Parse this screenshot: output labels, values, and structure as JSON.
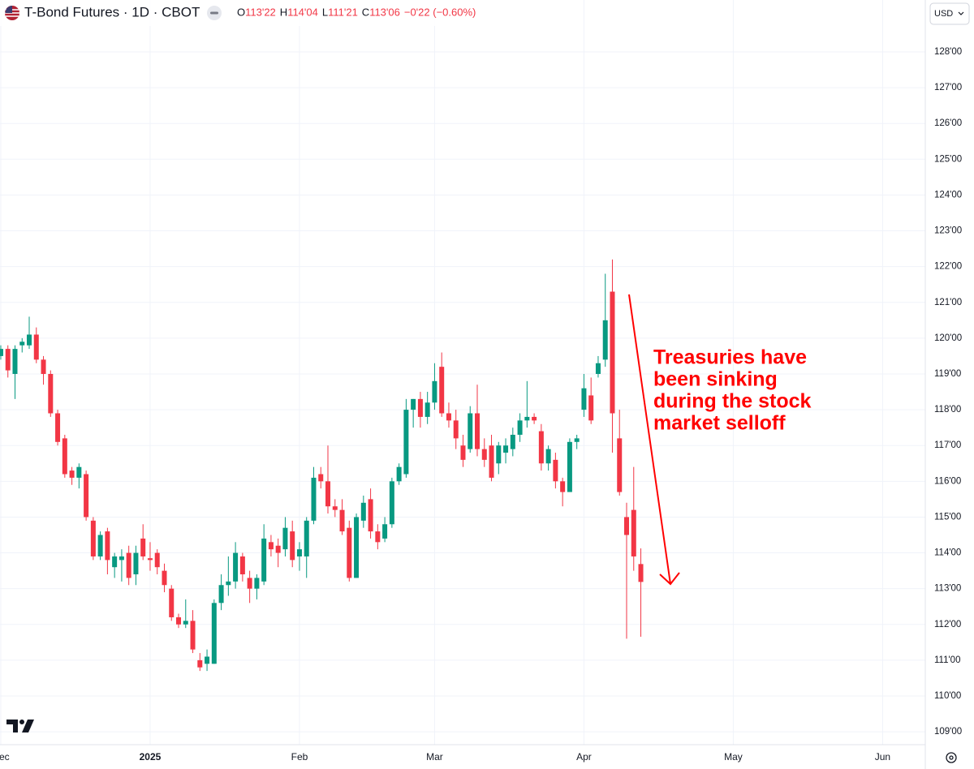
{
  "chart_data": {
    "type": "candlestick",
    "title": "T-Bond Futures · 1D · CBOT",
    "ohlc": [
      {
        "label": "O",
        "value": "113'22"
      },
      {
        "label": "H",
        "value": "114'04"
      },
      {
        "label": "L",
        "value": "111'21"
      },
      {
        "label": "C",
        "value": "113'06"
      }
    ],
    "change": "−0'22 (−0.60%)",
    "currency": "USD",
    "annotation": [
      "Treasuries have",
      "been sinking",
      "during the stock",
      "market selloff"
    ],
    "up_color": "#089981",
    "down_color": "#f23645",
    "annotation_color": "#ff0000",
    "grid": true,
    "open": [
      119.5,
      119.7,
      119.0,
      119.8,
      119.8,
      120.1,
      119.4,
      119.0,
      117.9,
      117.2,
      116.3,
      116.1,
      116.2,
      114.9,
      113.9,
      114.6,
      113.6,
      113.8,
      114.0,
      113.4,
      114.4,
      113.85,
      114.0,
      113.5,
      113.0,
      112.2,
      112.0,
      112.1,
      111.0,
      110.9,
      110.9,
      112.6,
      113.1,
      113.2,
      113.9,
      113.3,
      113.0,
      113.2,
      114.3,
      114.2,
      114.1,
      114.6,
      113.9,
      113.9,
      114.9,
      116.2,
      116.0,
      115.3,
      115.2,
      114.7,
      113.3,
      114.9,
      115.5,
      114.6,
      114.4,
      114.8,
      116.0,
      116.2,
      118.0,
      118.3,
      117.8,
      118.2,
      119.2,
      117.9,
      117.7,
      117.0,
      116.9,
      117.9,
      116.9,
      117.0,
      116.5,
      116.8,
      116.9,
      117.3,
      117.7,
      117.8,
      117.4,
      116.5,
      116.6,
      116.0,
      115.7,
      117.1,
      118.0,
      118.4,
      119.0,
      119.4,
      121.3,
      117.2,
      115.0,
      115.2,
      113.6875
    ],
    "high": [
      119.8,
      119.8,
      119.8,
      120.0,
      120.6,
      120.3,
      119.5,
      119.1,
      118.0,
      117.3,
      116.4,
      116.5,
      116.3,
      115.0,
      114.6,
      114.7,
      114.0,
      114.1,
      114.2,
      114.2,
      114.8,
      114.3,
      114.1,
      113.7,
      113.1,
      112.3,
      112.7,
      112.4,
      111.2,
      111.3,
      112.7,
      113.4,
      113.9,
      114.3,
      114.0,
      113.5,
      113.4,
      114.8,
      114.5,
      114.4,
      115.0,
      114.9,
      114.3,
      115.0,
      116.4,
      116.4,
      117.0,
      115.5,
      115.5,
      114.9,
      115.1,
      115.6,
      115.8,
      114.8,
      115.0,
      116.1,
      116.5,
      118.3,
      118.3,
      118.5,
      118.5,
      119.3,
      119.6,
      118.2,
      118.0,
      117.3,
      118.1,
      118.7,
      117.2,
      117.3,
      117.1,
      117.2,
      117.5,
      117.9,
      118.8,
      117.9,
      117.6,
      117.0,
      116.8,
      116.1,
      117.2,
      117.3,
      119.0,
      118.9,
      119.5,
      121.8,
      122.2,
      118.0,
      115.4,
      116.4,
      114.125
    ],
    "low": [
      119.4,
      118.9,
      118.3,
      119.6,
      119.7,
      119.3,
      118.7,
      117.8,
      117.0,
      116.1,
      115.9,
      115.8,
      114.9,
      113.8,
      113.8,
      113.4,
      113.3,
      113.2,
      113.1,
      113.1,
      113.8,
      113.5,
      113.4,
      112.9,
      112.1,
      111.9,
      111.9,
      111.2,
      110.7,
      110.7,
      110.9,
      112.4,
      112.8,
      113.0,
      113.2,
      112.6,
      112.7,
      113.1,
      113.9,
      113.6,
      113.9,
      113.6,
      113.5,
      113.3,
      114.8,
      115.8,
      115.1,
      115.0,
      114.5,
      113.2,
      113.3,
      114.7,
      114.4,
      114.1,
      114.3,
      114.7,
      115.9,
      116.1,
      117.5,
      117.5,
      117.6,
      118.0,
      117.8,
      117.5,
      116.9,
      116.4,
      116.8,
      116.7,
      116.4,
      116.0,
      116.2,
      116.5,
      116.7,
      117.1,
      117.5,
      117.6,
      116.3,
      116.3,
      115.8,
      115.3,
      115.7,
      116.9,
      117.8,
      117.6,
      118.9,
      119.2,
      116.8,
      115.6,
      111.6,
      113.5,
      111.65625
    ],
    "close": [
      119.7,
      119.1,
      119.7,
      119.9,
      120.1,
      119.4,
      119.0,
      117.9,
      117.1,
      116.2,
      116.1,
      116.4,
      115.0,
      113.9,
      114.5,
      113.8,
      113.9,
      113.9,
      113.3,
      114.0,
      113.9,
      113.8,
      113.6,
      113.1,
      112.2,
      112.0,
      112.1,
      111.3,
      110.8,
      111.1,
      112.6,
      113.1,
      113.2,
      114.0,
      113.4,
      113.0,
      113.3,
      114.4,
      114.1,
      114.0,
      114.7,
      113.8,
      114.1,
      114.9,
      116.1,
      116.0,
      115.3,
      115.2,
      114.6,
      113.3,
      115.0,
      115.4,
      114.6,
      114.3,
      114.8,
      116.0,
      116.4,
      118.0,
      118.3,
      117.8,
      118.2,
      118.8,
      117.9,
      117.7,
      117.2,
      116.6,
      117.9,
      116.9,
      116.6,
      116.1,
      117.0,
      117.0,
      117.3,
      117.7,
      117.8,
      117.7,
      116.5,
      116.9,
      116.0,
      115.7,
      117.1,
      117.2,
      118.6,
      117.7,
      119.3,
      120.5,
      117.9,
      115.7,
      114.5,
      113.9,
      113.1875
    ],
    "xlim": [
      -0.11,
      130
    ],
    "xticks": [
      {
        "value": 0,
        "label": "Dec"
      },
      {
        "value": 21,
        "label": "2025"
      },
      {
        "value": 42,
        "label": "Feb"
      },
      {
        "value": 61,
        "label": "Mar"
      },
      {
        "value": 82,
        "label": "Apr"
      },
      {
        "value": 103,
        "label": "May"
      },
      {
        "value": 124,
        "label": "Jun"
      }
    ],
    "ylim": [
      108.64,
      129.45
    ],
    "yticks": [
      {
        "value": 109,
        "label": "109'00"
      },
      {
        "value": 110,
        "label": "110'00"
      },
      {
        "value": 111,
        "label": "111'00"
      },
      {
        "value": 112,
        "label": "112'00"
      },
      {
        "value": 113,
        "label": "113'00"
      },
      {
        "value": 114,
        "label": "114'00"
      },
      {
        "value": 115,
        "label": "115'00"
      },
      {
        "value": 116,
        "label": "116'00"
      },
      {
        "value": 117,
        "label": "117'00"
      },
      {
        "value": 118,
        "label": "118'00"
      },
      {
        "value": 119,
        "label": "119'00"
      },
      {
        "value": 120,
        "label": "120'00"
      },
      {
        "value": 121,
        "label": "121'00"
      },
      {
        "value": 122,
        "label": "122'00"
      },
      {
        "value": 123,
        "label": "123'00"
      },
      {
        "value": 124,
        "label": "124'00"
      },
      {
        "value": 125,
        "label": "125'00"
      },
      {
        "value": 126,
        "label": "126'00"
      },
      {
        "value": 127,
        "label": "127'00"
      },
      {
        "value": 128,
        "label": "128'00"
      }
    ]
  }
}
